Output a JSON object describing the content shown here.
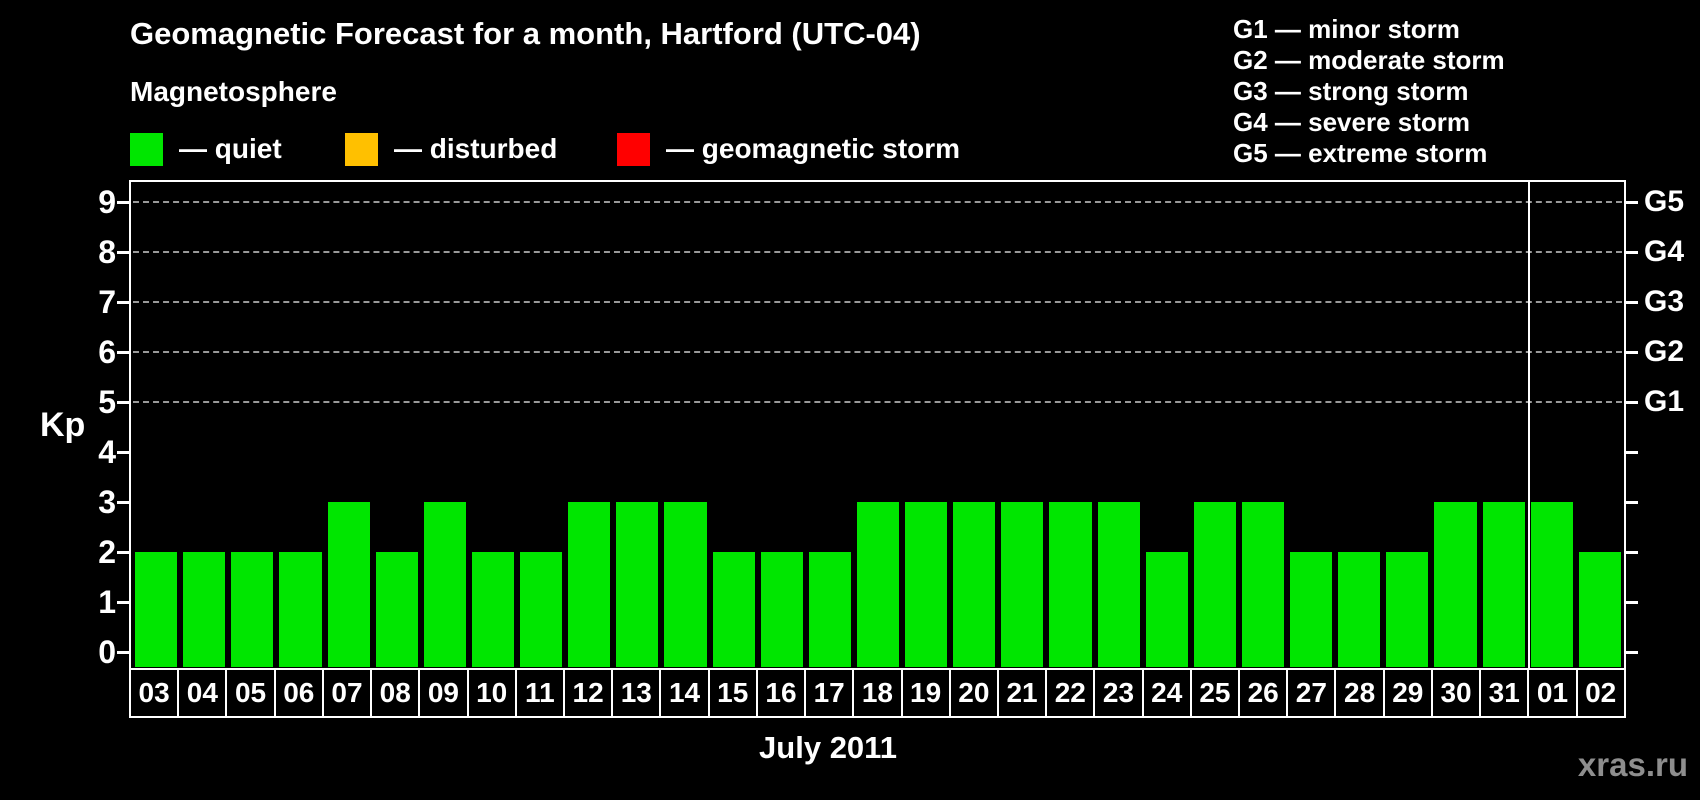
{
  "header": {
    "title": "Geomagnetic Forecast for a month, Hartford (UTC-04)",
    "subtitle": "Magnetosphere",
    "legend": [
      {
        "name": "quiet",
        "label": "— quiet",
        "color": "#00e600"
      },
      {
        "name": "disturbed",
        "label": "— disturbed",
        "color": "#ffc000"
      },
      {
        "name": "geomagnetic-storm",
        "label": "— geomagnetic storm",
        "color": "#ff0000"
      }
    ],
    "storm_scale": [
      "G1 — minor storm",
      "G2 — moderate storm",
      "G3 — strong storm",
      "G4 — severe storm",
      "G5 — extreme storm"
    ]
  },
  "chart_data": {
    "type": "bar",
    "title": "Geomagnetic Forecast for a month, Hartford (UTC-04)",
    "ylabel": "Kp",
    "xlabel": "July 2011",
    "categories": [
      "03",
      "04",
      "05",
      "06",
      "07",
      "08",
      "09",
      "10",
      "11",
      "12",
      "13",
      "14",
      "15",
      "16",
      "17",
      "18",
      "19",
      "20",
      "21",
      "22",
      "23",
      "24",
      "25",
      "26",
      "27",
      "28",
      "29",
      "30",
      "31",
      "01",
      "02"
    ],
    "values": [
      2,
      2,
      2,
      2,
      3,
      2,
      3,
      2,
      2,
      3,
      3,
      3,
      2,
      2,
      2,
      3,
      3,
      3,
      3,
      3,
      3,
      2,
      3,
      3,
      2,
      2,
      2,
      3,
      3,
      3,
      2
    ],
    "bar_color": "#00e600",
    "ylim": [
      0,
      9.4
    ],
    "yticks": [
      "0",
      "1",
      "2",
      "3",
      "4",
      "5",
      "6",
      "7",
      "8",
      "9"
    ],
    "gridlines_at_kp": [
      5,
      6,
      7,
      8,
      9
    ],
    "grid_style": "dashed gray horizontal lines at storm levels only",
    "right_axis": [
      {
        "label": "G1",
        "kp": 5
      },
      {
        "label": "G2",
        "kp": 6
      },
      {
        "label": "G3",
        "kp": 7
      },
      {
        "label": "G4",
        "kp": 8
      },
      {
        "label": "G5",
        "kp": 9
      }
    ],
    "month_boundary_after_category": "31",
    "legend_position": "top-left",
    "colors": {
      "background": "#000000",
      "frame": "#ffffff",
      "gridline": "#9a9a9a",
      "text": "#ffffff"
    }
  },
  "footer": {
    "month_label": "July 2011",
    "watermark": "xras.ru"
  }
}
